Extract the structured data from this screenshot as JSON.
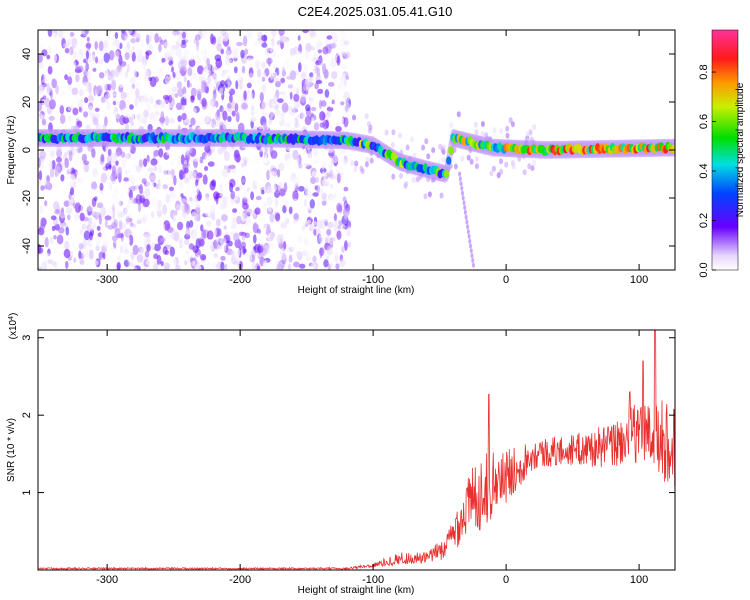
{
  "title": "C2E4.2025.031.05.41.G10",
  "spectrogram": {
    "type": "heatmap",
    "xlabel": "Height of straight line (km)",
    "ylabel": "Frequency (Hz)",
    "xlim": [
      -352,
      127
    ],
    "ylim": [
      -50,
      50
    ],
    "xticks": [
      -300,
      -200,
      -100,
      0,
      100
    ],
    "yticks": [
      -40,
      -20,
      0,
      20,
      40
    ],
    "colorbar": {
      "label": "Normalized spectral amplitude",
      "range": [
        0,
        0.97
      ],
      "ticks": [
        0.0,
        0.2,
        0.4,
        0.6,
        0.8
      ]
    },
    "ridge": [
      {
        "x": -352,
        "f": 5
      },
      {
        "x": -200,
        "f": 5
      },
      {
        "x": -120,
        "f": 4
      },
      {
        "x": -100,
        "f": 2
      },
      {
        "x": -80,
        "f": -5
      },
      {
        "x": -60,
        "f": -8
      },
      {
        "x": -45,
        "f": -10
      },
      {
        "x": -40,
        "f": 5
      },
      {
        "x": -25,
        "f": 3
      },
      {
        "x": -10,
        "f": 1
      },
      {
        "x": 30,
        "f": 0
      },
      {
        "x": 127,
        "f": 1
      }
    ]
  },
  "snr_chart": {
    "type": "line",
    "xlabel": "Height of straight line (km)",
    "ylabel": "SNR (10 * v/v)",
    "scale_label": "(x10",
    "scale_exp": "4",
    "scale_close": ")",
    "xlim": [
      -352,
      127
    ],
    "ylim": [
      0,
      3.1
    ],
    "xticks": [
      -300,
      -200,
      -100,
      0,
      100
    ],
    "yticks": [
      1,
      2,
      3
    ],
    "color": "#e8302e",
    "envelope": [
      {
        "x": -352,
        "mean": 0.02,
        "amp": 0.01
      },
      {
        "x": -120,
        "mean": 0.02,
        "amp": 0.01
      },
      {
        "x": -100,
        "mean": 0.06,
        "amp": 0.03
      },
      {
        "x": -80,
        "mean": 0.15,
        "amp": 0.08
      },
      {
        "x": -60,
        "mean": 0.15,
        "amp": 0.08
      },
      {
        "x": -45,
        "mean": 0.3,
        "amp": 0.15
      },
      {
        "x": -30,
        "mean": 0.8,
        "amp": 0.4
      },
      {
        "x": -20,
        "mean": 1.0,
        "amp": 0.5
      },
      {
        "x": 0,
        "mean": 1.2,
        "amp": 0.35
      },
      {
        "x": 20,
        "mean": 1.5,
        "amp": 0.2
      },
      {
        "x": 50,
        "mean": 1.55,
        "amp": 0.2
      },
      {
        "x": 80,
        "mean": 1.6,
        "amp": 0.3
      },
      {
        "x": 100,
        "mean": 1.8,
        "amp": 0.4
      },
      {
        "x": 127,
        "mean": 1.6,
        "amp": 0.6
      }
    ],
    "peaks": [
      {
        "x": -13,
        "y": 2.27
      },
      {
        "x": 112,
        "y": 3.1
      },
      {
        "x": 103,
        "y": 2.7
      },
      {
        "x": 93,
        "y": 2.3
      }
    ]
  }
}
